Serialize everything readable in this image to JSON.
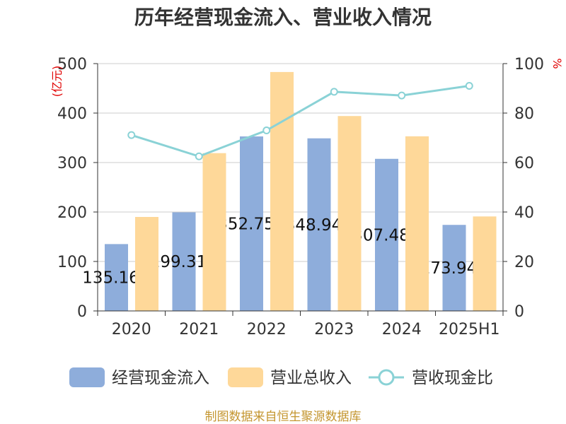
{
  "chart_data": {
    "type": "bar",
    "title": "历年经营现金流入、营业收入情况",
    "categories": [
      "2020",
      "2021",
      "2022",
      "2023",
      "2024",
      "2025H1"
    ],
    "series": [
      {
        "name": "经营现金流入",
        "type": "bar",
        "axis": "left",
        "color": "#8eaddb",
        "values": [
          135.16,
          199.31,
          352.75,
          348.94,
          307.48,
          173.94
        ]
      },
      {
        "name": "营业总收入",
        "type": "bar",
        "axis": "left",
        "color": "#fed899",
        "values": [
          190,
          319,
          483,
          394,
          353,
          191
        ]
      },
      {
        "name": "营收现金比",
        "type": "line",
        "axis": "right",
        "color": "#8ad2d6",
        "values": [
          71.1,
          62.5,
          73.0,
          88.6,
          87.1,
          91.0
        ]
      }
    ],
    "ylabel": "(亿元)",
    "ylabel_right": "%",
    "ylim": [
      0,
      500
    ],
    "yticks": [
      0,
      100,
      200,
      300,
      400,
      500
    ],
    "ylim_right": [
      0,
      100
    ],
    "yticks_right": [
      0,
      20,
      40,
      60,
      80,
      100
    ],
    "grid": true,
    "legend": "bottom"
  },
  "footer": "制图数据来自恒生聚源数据库"
}
